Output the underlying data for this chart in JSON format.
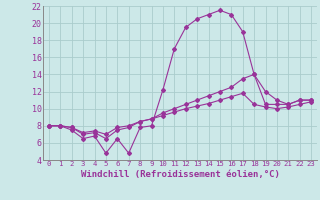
{
  "background_color": "#cce8e8",
  "grid_color": "#aacccc",
  "line_color": "#993399",
  "marker_color": "#993399",
  "xlabel": "Windchill (Refroidissement éolien,°C)",
  "xlabel_fontsize": 6.5,
  "xtick_fontsize": 5.2,
  "ytick_fontsize": 6.0,
  "xlim": [
    -0.5,
    23.5
  ],
  "ylim": [
    4,
    22
  ],
  "yticks": [
    4,
    6,
    8,
    10,
    12,
    14,
    16,
    18,
    20,
    22
  ],
  "xticks": [
    0,
    1,
    2,
    3,
    4,
    5,
    6,
    7,
    8,
    9,
    10,
    11,
    12,
    13,
    14,
    15,
    16,
    17,
    18,
    19,
    20,
    21,
    22,
    23
  ],
  "series1_x": [
    0,
    1,
    2,
    3,
    4,
    5,
    6,
    7,
    8,
    9,
    10,
    11,
    12,
    13,
    14,
    15,
    16,
    17,
    18,
    19,
    20,
    21,
    22,
    23
  ],
  "series1_y": [
    8.0,
    8.0,
    7.5,
    6.5,
    6.8,
    4.8,
    6.5,
    4.8,
    7.8,
    8.0,
    12.2,
    17.0,
    19.5,
    20.5,
    21.0,
    21.5,
    21.0,
    19.0,
    14.0,
    12.0,
    11.0,
    10.5,
    11.0,
    11.0
  ],
  "series2_x": [
    0,
    1,
    2,
    3,
    4,
    5,
    6,
    7,
    8,
    9,
    10,
    11,
    12,
    13,
    14,
    15,
    16,
    17,
    18,
    19,
    20,
    21,
    22,
    23
  ],
  "series2_y": [
    8.0,
    8.0,
    7.8,
    7.0,
    7.2,
    6.5,
    7.5,
    7.8,
    8.5,
    8.8,
    9.5,
    10.0,
    10.5,
    11.0,
    11.5,
    12.0,
    12.5,
    13.5,
    14.0,
    10.5,
    10.5,
    10.5,
    11.0,
    11.0
  ],
  "series3_x": [
    0,
    1,
    2,
    3,
    4,
    5,
    6,
    7,
    8,
    9,
    10,
    11,
    12,
    13,
    14,
    15,
    16,
    17,
    18,
    19,
    20,
    21,
    22,
    23
  ],
  "series3_y": [
    8.0,
    8.0,
    7.8,
    7.2,
    7.4,
    7.0,
    7.8,
    8.0,
    8.5,
    8.8,
    9.2,
    9.6,
    10.0,
    10.3,
    10.6,
    11.0,
    11.4,
    11.8,
    10.5,
    10.2,
    10.0,
    10.2,
    10.5,
    10.8
  ]
}
